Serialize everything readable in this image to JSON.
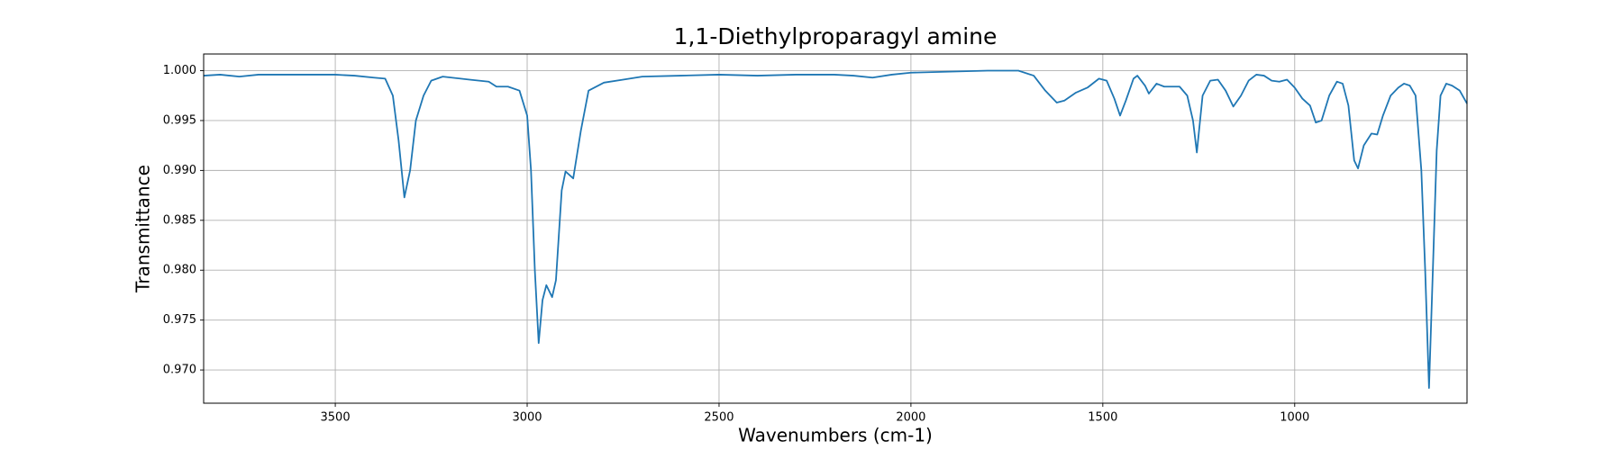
{
  "chart_data": {
    "type": "line",
    "title": "1,1-Diethylproparagyl amine",
    "x_label": "Wavenumbers (cm-1)",
    "y_label": "Transmittance",
    "x": [
      3843,
      3800,
      3750,
      3700,
      3600,
      3500,
      3450,
      3400,
      3370,
      3350,
      3335,
      3320,
      3305,
      3290,
      3270,
      3250,
      3220,
      3150,
      3100,
      3080,
      3050,
      3020,
      3000,
      2990,
      2980,
      2970,
      2960,
      2950,
      2935,
      2925,
      2910,
      2900,
      2880,
      2860,
      2840,
      2800,
      2750,
      2700,
      2600,
      2500,
      2400,
      2300,
      2200,
      2150,
      2100,
      2050,
      2000,
      1900,
      1800,
      1720,
      1680,
      1650,
      1620,
      1600,
      1570,
      1540,
      1510,
      1490,
      1470,
      1455,
      1440,
      1420,
      1410,
      1390,
      1380,
      1360,
      1340,
      1300,
      1280,
      1265,
      1255,
      1240,
      1220,
      1200,
      1180,
      1160,
      1140,
      1120,
      1100,
      1080,
      1060,
      1040,
      1020,
      1000,
      980,
      960,
      945,
      930,
      910,
      890,
      875,
      860,
      845,
      835,
      820,
      800,
      785,
      770,
      750,
      730,
      715,
      700,
      685,
      670,
      660,
      650,
      640,
      630,
      620,
      605,
      590,
      570,
      551
    ],
    "values": [
      0.9995,
      0.9996,
      0.9994,
      0.9996,
      0.9996,
      0.9996,
      0.9995,
      0.9993,
      0.9992,
      0.9975,
      0.993,
      0.9873,
      0.99,
      0.995,
      0.9975,
      0.999,
      0.9994,
      0.9991,
      0.9989,
      0.9984,
      0.9984,
      0.998,
      0.9955,
      0.99,
      0.98,
      0.9727,
      0.977,
      0.9785,
      0.9773,
      0.979,
      0.988,
      0.9899,
      0.9892,
      0.994,
      0.998,
      0.9988,
      0.9991,
      0.9994,
      0.9995,
      0.9996,
      0.9995,
      0.9996,
      0.9996,
      0.9995,
      0.9993,
      0.9996,
      0.9998,
      0.9999,
      1.0,
      1.0,
      0.9995,
      0.998,
      0.9968,
      0.997,
      0.9978,
      0.9983,
      0.9992,
      0.999,
      0.9972,
      0.9955,
      0.997,
      0.9992,
      0.9995,
      0.9985,
      0.9977,
      0.9987,
      0.9984,
      0.9984,
      0.9975,
      0.995,
      0.9918,
      0.9975,
      0.999,
      0.9991,
      0.998,
      0.9964,
      0.9975,
      0.999,
      0.9996,
      0.9995,
      0.999,
      0.9989,
      0.9991,
      0.9983,
      0.9972,
      0.9965,
      0.9948,
      0.995,
      0.9975,
      0.9989,
      0.9987,
      0.9965,
      0.991,
      0.9902,
      0.9925,
      0.9937,
      0.9936,
      0.9955,
      0.9975,
      0.9983,
      0.9987,
      0.9985,
      0.9975,
      0.99,
      0.98,
      0.9682,
      0.98,
      0.992,
      0.9975,
      0.9987,
      0.9985,
      0.998,
      0.9967
    ],
    "color": "#1f77b4",
    "xlim": [
      3843,
      551
    ],
    "ylim": [
      0.96667,
      1.00167
    ],
    "xticks": [
      3500,
      3000,
      2500,
      2000,
      1500,
      1000
    ],
    "yticks": [
      {
        "value": 0.97,
        "label": "0.970"
      },
      0.975,
      {
        "value": 0.98,
        "label": "0.980"
      },
      0.985,
      {
        "value": 0.99,
        "label": "0.990"
      },
      0.995,
      {
        "value": 1.0,
        "label": "1.000"
      }
    ],
    "grid": true
  }
}
